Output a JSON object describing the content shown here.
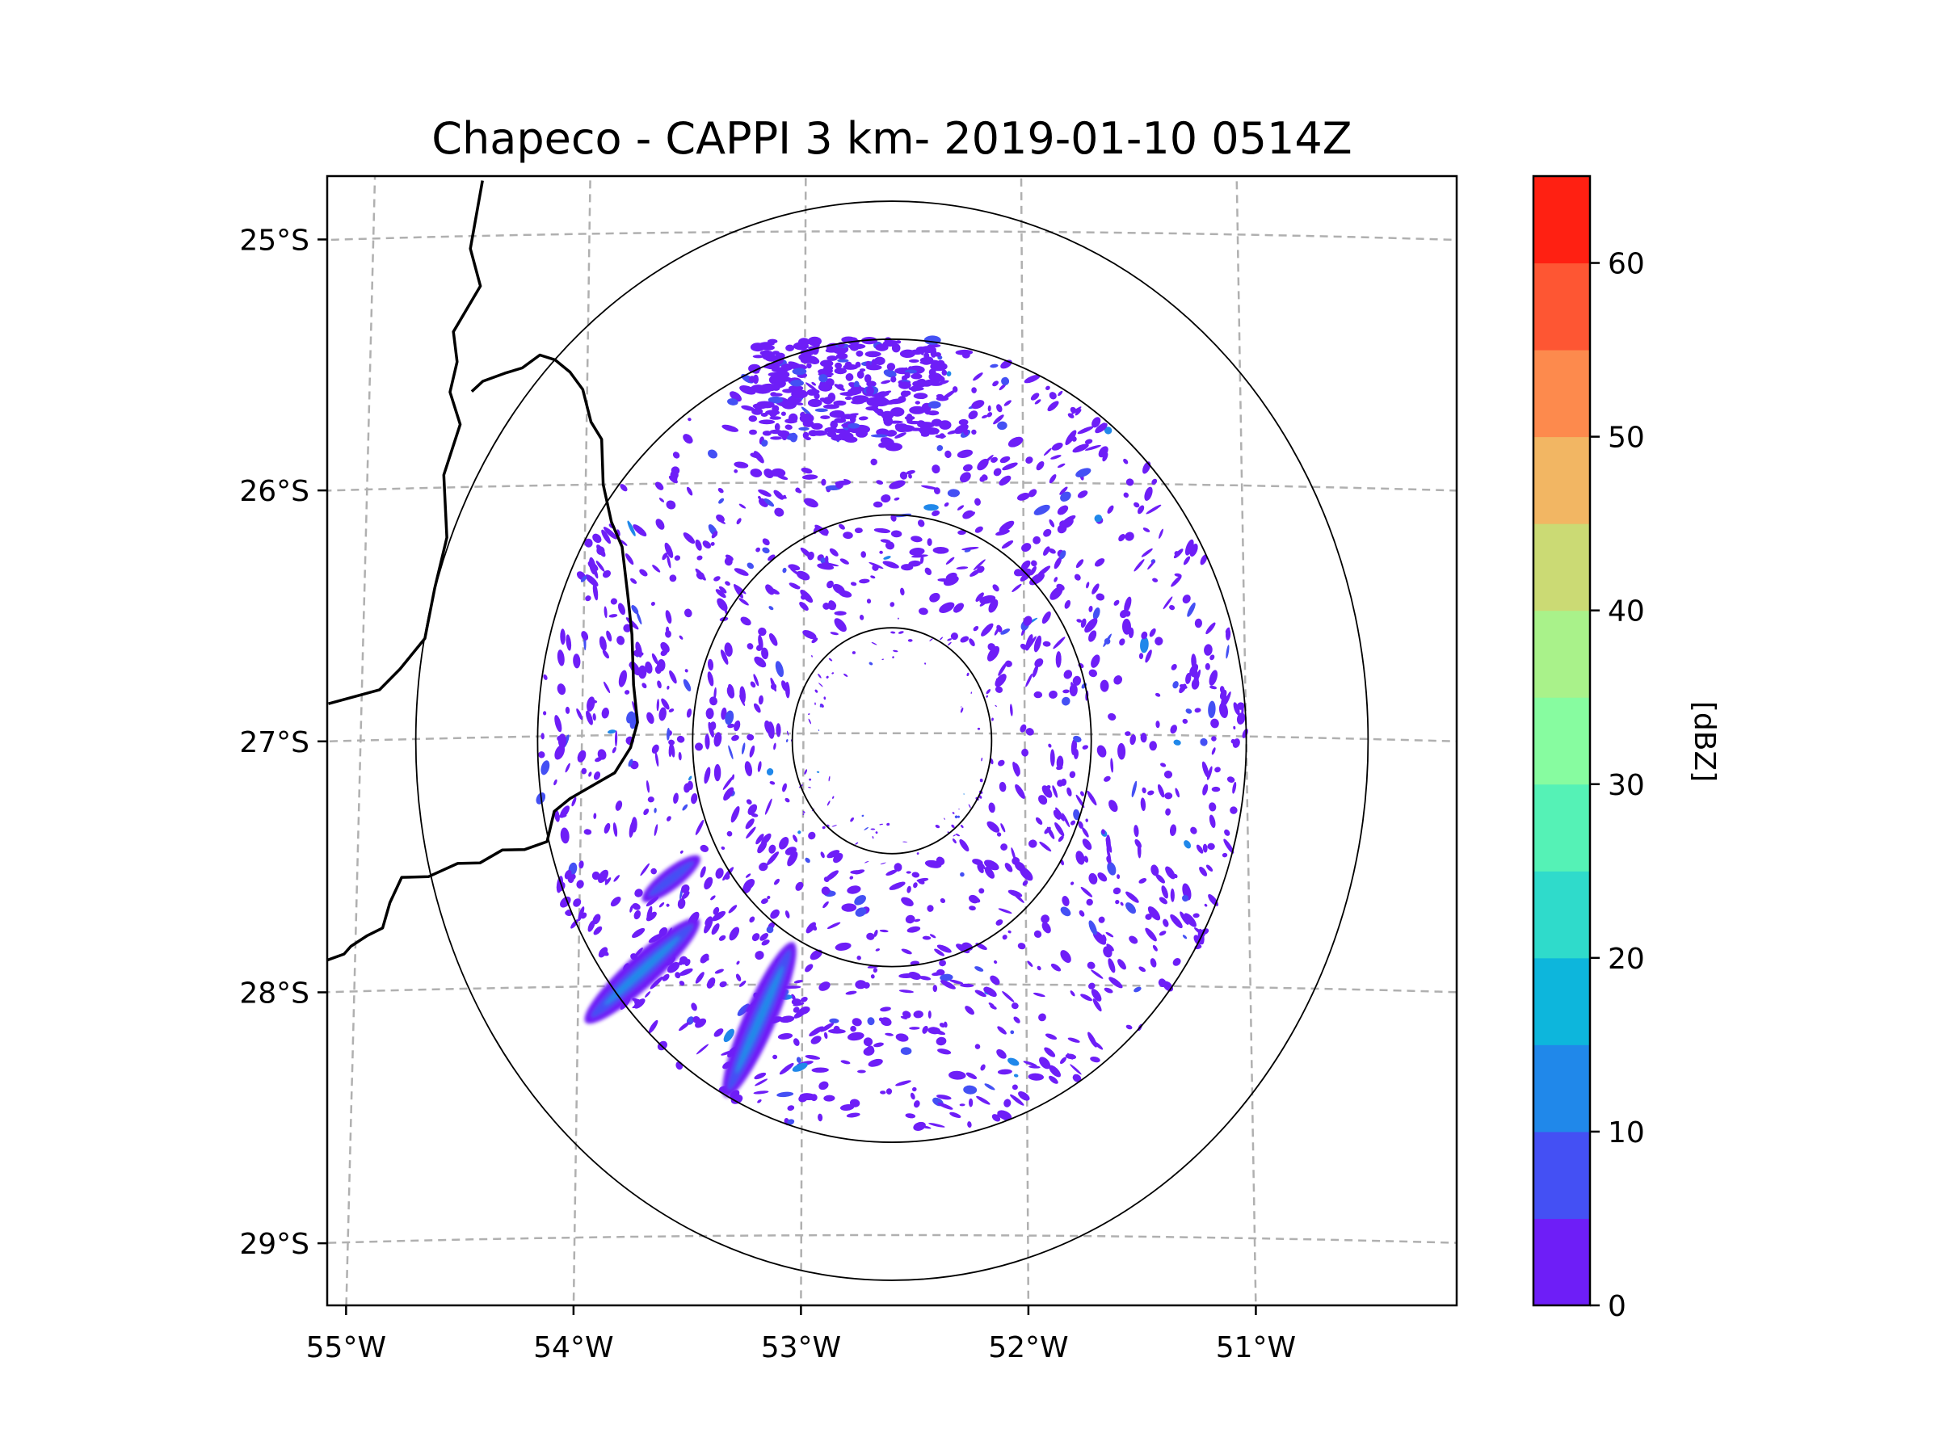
{
  "chart_data": {
    "type": "radar-ppi",
    "title": "Chapeco - CAPPI 3 km- 2019-01-10 0514Z",
    "radar_center": {
      "lon": -52.6,
      "lat": -27.03
    },
    "lon_range": [
      -55.15,
      -50.05
    ],
    "lat_range": [
      -29.28,
      -24.78
    ],
    "range_rings_deg": [
      0.45,
      0.9,
      1.6,
      2.15
    ],
    "x_ticks": [
      -55,
      -54,
      -53,
      -52,
      -51
    ],
    "x_tick_labels": [
      "55°W",
      "54°W",
      "53°W",
      "52°W",
      "51°W"
    ],
    "y_ticks": [
      -25,
      -26,
      -27,
      -28,
      -29
    ],
    "y_tick_labels": [
      "25°S",
      "26°S",
      "27°S",
      "28°S",
      "29°S"
    ],
    "gridlines": true,
    "colorbar": {
      "label": "[dBZ]",
      "min": 0,
      "max": 65,
      "bounds": [
        0,
        5,
        10,
        15,
        20,
        25,
        30,
        35,
        40,
        45,
        50,
        55,
        60,
        65
      ],
      "colors": [
        "#6e1ef7",
        "#4450f4",
        "#2088ea",
        "#0db6dc",
        "#2fdbcb",
        "#55f2b6",
        "#87fca0",
        "#a9f28a",
        "#cbda74",
        "#f2b663",
        "#fd8a4d",
        "#fe5633",
        "#ff2012"
      ],
      "ticks": [
        0,
        10,
        20,
        30,
        40,
        50,
        60
      ],
      "tick_labels": [
        "0",
        "10",
        "20",
        "30",
        "40",
        "50",
        "60"
      ]
    },
    "echo_bands": [
      {
        "name": "southwest band A",
        "start": {
          "lon": -53.95,
          "lat": -28.13
        },
        "end": {
          "lon": -53.48,
          "lat": -27.75
        },
        "peak_dbz": 15
      },
      {
        "name": "southwest band B",
        "start": {
          "lon": -53.33,
          "lat": -28.43
        },
        "end": {
          "lon": -53.05,
          "lat": -27.85
        },
        "peak_dbz": 15
      },
      {
        "name": "west fragment",
        "start": {
          "lon": -53.7,
          "lat": -27.65
        },
        "end": {
          "lon": -53.48,
          "lat": -27.5
        },
        "peak_dbz": 10
      }
    ],
    "scattered_echo_dbz": [
      0,
      5
    ],
    "border_lines": [
      [
        [
          -54.5,
          -24.78
        ],
        [
          -54.55,
          -25.05
        ],
        [
          -54.5,
          -25.2
        ],
        [
          -54.62,
          -25.38
        ],
        [
          -54.6,
          -25.5
        ],
        [
          -54.63,
          -25.62
        ],
        [
          -54.58,
          -25.75
        ],
        [
          -54.65,
          -25.95
        ],
        [
          -54.63,
          -26.2
        ],
        [
          -54.68,
          -26.4
        ],
        [
          -54.72,
          -26.6
        ],
        [
          -54.83,
          -26.72
        ],
        [
          -54.92,
          -26.8
        ],
        [
          -55.15,
          -26.85
        ]
      ],
      [
        [
          -54.53,
          -25.62
        ],
        [
          -54.48,
          -25.58
        ],
        [
          -54.38,
          -25.55
        ],
        [
          -54.3,
          -25.53
        ],
        [
          -54.22,
          -25.48
        ],
        [
          -54.15,
          -25.5
        ],
        [
          -54.08,
          -25.55
        ],
        [
          -54.02,
          -25.62
        ],
        [
          -53.98,
          -25.75
        ],
        [
          -53.93,
          -25.82
        ],
        [
          -53.92,
          -26.0
        ],
        [
          -53.88,
          -26.15
        ],
        [
          -53.83,
          -26.25
        ],
        [
          -53.8,
          -26.45
        ],
        [
          -53.78,
          -26.6
        ],
        [
          -53.77,
          -26.8
        ],
        [
          -53.75,
          -26.95
        ],
        [
          -53.78,
          -27.05
        ],
        [
          -53.85,
          -27.15
        ],
        [
          -53.95,
          -27.2
        ],
        [
          -54.05,
          -27.25
        ],
        [
          -54.12,
          -27.3
        ],
        [
          -54.15,
          -27.42
        ],
        [
          -54.25,
          -27.45
        ],
        [
          -54.35,
          -27.45
        ],
        [
          -54.45,
          -27.5
        ],
        [
          -54.55,
          -27.5
        ],
        [
          -54.68,
          -27.55
        ],
        [
          -54.8,
          -27.55
        ],
        [
          -54.85,
          -27.65
        ],
        [
          -54.88,
          -27.75
        ],
        [
          -54.95,
          -27.78
        ],
        [
          -55.02,
          -27.82
        ],
        [
          -55.05,
          -27.85
        ],
        [
          -55.15,
          -27.88
        ]
      ]
    ]
  }
}
